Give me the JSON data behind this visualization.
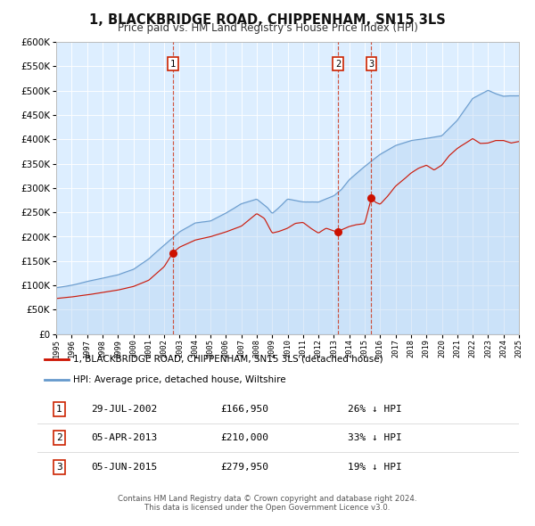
{
  "title": "1, BLACKBRIDGE ROAD, CHIPPENHAM, SN15 3LS",
  "subtitle": "Price paid vs. HM Land Registry's House Price Index (HPI)",
  "bg_color": "#ddeeff",
  "hpi_color": "#6699cc",
  "hpi_fill_color": "#aaccee",
  "price_color": "#cc1100",
  "price_dot_color": "#cc1100",
  "ylim": [
    0,
    600000
  ],
  "yticks": [
    0,
    50000,
    100000,
    150000,
    200000,
    250000,
    300000,
    350000,
    400000,
    450000,
    500000,
    550000,
    600000
  ],
  "xlim_start": 1995,
  "xlim_end": 2025,
  "legend_price_label": "1, BLACKBRIDGE ROAD, CHIPPENHAM, SN15 3LS (detached house)",
  "legend_hpi_label": "HPI: Average price, detached house, Wiltshire",
  "sale1_date": "29-JUL-2002",
  "sale1_price": "£166,950",
  "sale1_hpi": "26% ↓ HPI",
  "sale1_year": 2002.57,
  "sale1_value": 166950,
  "sale2_date": "05-APR-2013",
  "sale2_price": "£210,000",
  "sale2_hpi": "33% ↓ HPI",
  "sale2_year": 2013.26,
  "sale2_value": 210000,
  "sale3_date": "05-JUN-2015",
  "sale3_price": "£279,950",
  "sale3_hpi": "19% ↓ HPI",
  "sale3_year": 2015.43,
  "sale3_value": 279950,
  "footer1": "Contains HM Land Registry data © Crown copyright and database right 2024.",
  "footer2": "This data is licensed under the Open Government Licence v3.0."
}
